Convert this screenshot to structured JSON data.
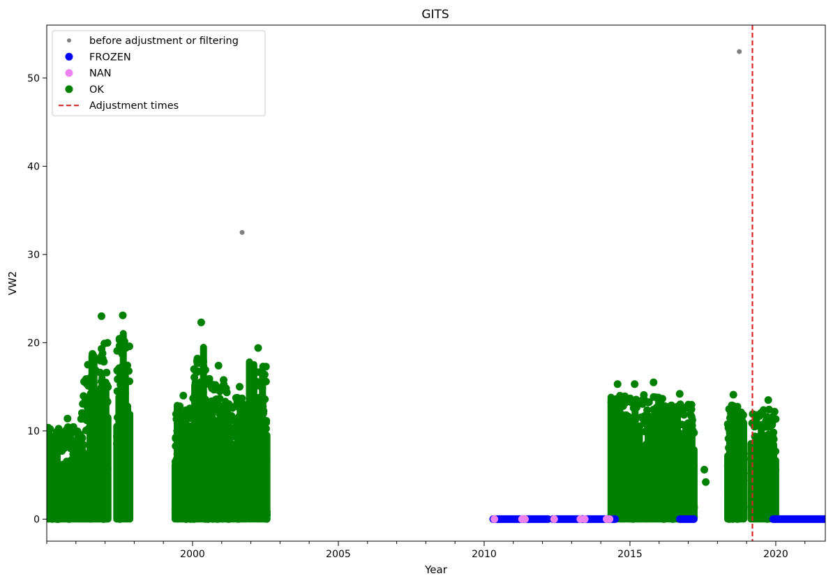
{
  "chart_data": {
    "type": "scatter",
    "title": "GITS",
    "xlabel": "Year",
    "ylabel": "VW2",
    "xlim": [
      1995.0,
      2021.7
    ],
    "ylim": [
      -2.5,
      56
    ],
    "x_ticks": [
      2000,
      2005,
      2010,
      2015,
      2020
    ],
    "y_ticks": [
      0,
      10,
      20,
      30,
      40,
      50
    ],
    "grid": false,
    "legend_position": "upper-left",
    "legend": [
      {
        "label": "before adjustment or filtering",
        "marker": "small-dot",
        "color": "#808080"
      },
      {
        "label": "FROZEN",
        "marker": "dot",
        "color": "#0000ff"
      },
      {
        "label": "NAN",
        "marker": "dot",
        "color": "#ee82ee"
      },
      {
        "label": "OK",
        "marker": "dot",
        "color": "#008000"
      },
      {
        "label": "Adjustment times",
        "marker": "dashed-line",
        "color": "#d62728"
      }
    ],
    "series": [
      {
        "name": "before adjustment or filtering",
        "color": "#808080",
        "points": [
          [
            2001.7,
            32.5
          ],
          [
            2018.75,
            53.0
          ]
        ]
      },
      {
        "name": "FROZEN",
        "color": "#0000ff",
        "segments": [
          [
            2010.3,
            2012.2
          ],
          [
            2012.35,
            2014.5
          ],
          [
            2016.7,
            2017.2
          ],
          [
            2019.9,
            2021.7
          ]
        ],
        "value": 0
      },
      {
        "name": "NAN",
        "color": "#ee82ee",
        "points": [
          [
            2010.35,
            0
          ],
          [
            2011.3,
            0
          ],
          [
            2011.4,
            0
          ],
          [
            2012.4,
            0
          ],
          [
            2013.3,
            0
          ],
          [
            2013.45,
            0
          ],
          [
            2014.2,
            0
          ],
          [
            2014.3,
            0
          ]
        ]
      },
      {
        "name": "OK",
        "color": "#008000",
        "clusters": [
          {
            "x_start": 1995.0,
            "x_end": 1996.15,
            "max": 11.4
          },
          {
            "x_start": 1996.15,
            "x_end": 1996.55,
            "max": 17.5
          },
          {
            "x_start": 1996.55,
            "x_end": 1997.1,
            "max": 23.0
          },
          {
            "x_start": 1997.4,
            "x_end": 1997.85,
            "max": 23.1
          },
          {
            "x_start": 1999.4,
            "x_end": 2000.0,
            "max": 14.0
          },
          {
            "x_start": 2000.0,
            "x_end": 2000.45,
            "max": 22.3
          },
          {
            "x_start": 2000.45,
            "x_end": 2001.2,
            "max": 17.4
          },
          {
            "x_start": 2001.2,
            "x_end": 2001.85,
            "max": 15.0
          },
          {
            "x_start": 2001.95,
            "x_end": 2002.55,
            "max": 19.4
          },
          {
            "x_start": 2014.35,
            "x_end": 2014.95,
            "max": 15.3
          },
          {
            "x_start": 2014.95,
            "x_end": 2015.55,
            "max": 15.3
          },
          {
            "x_start": 2015.55,
            "x_end": 2016.2,
            "max": 15.5
          },
          {
            "x_start": 2016.2,
            "x_end": 2017.2,
            "max": 14.2
          },
          {
            "x_start": 2018.35,
            "x_end": 2018.9,
            "max": 14.1
          },
          {
            "x_start": 2019.15,
            "x_end": 2020.0,
            "max": 13.5
          }
        ],
        "points": [
          [
            2017.55,
            5.6
          ],
          [
            2017.6,
            4.2
          ],
          [
            2001.05,
            1.8
          ]
        ]
      }
    ],
    "adjustment_times": [
      2019.2
    ]
  }
}
